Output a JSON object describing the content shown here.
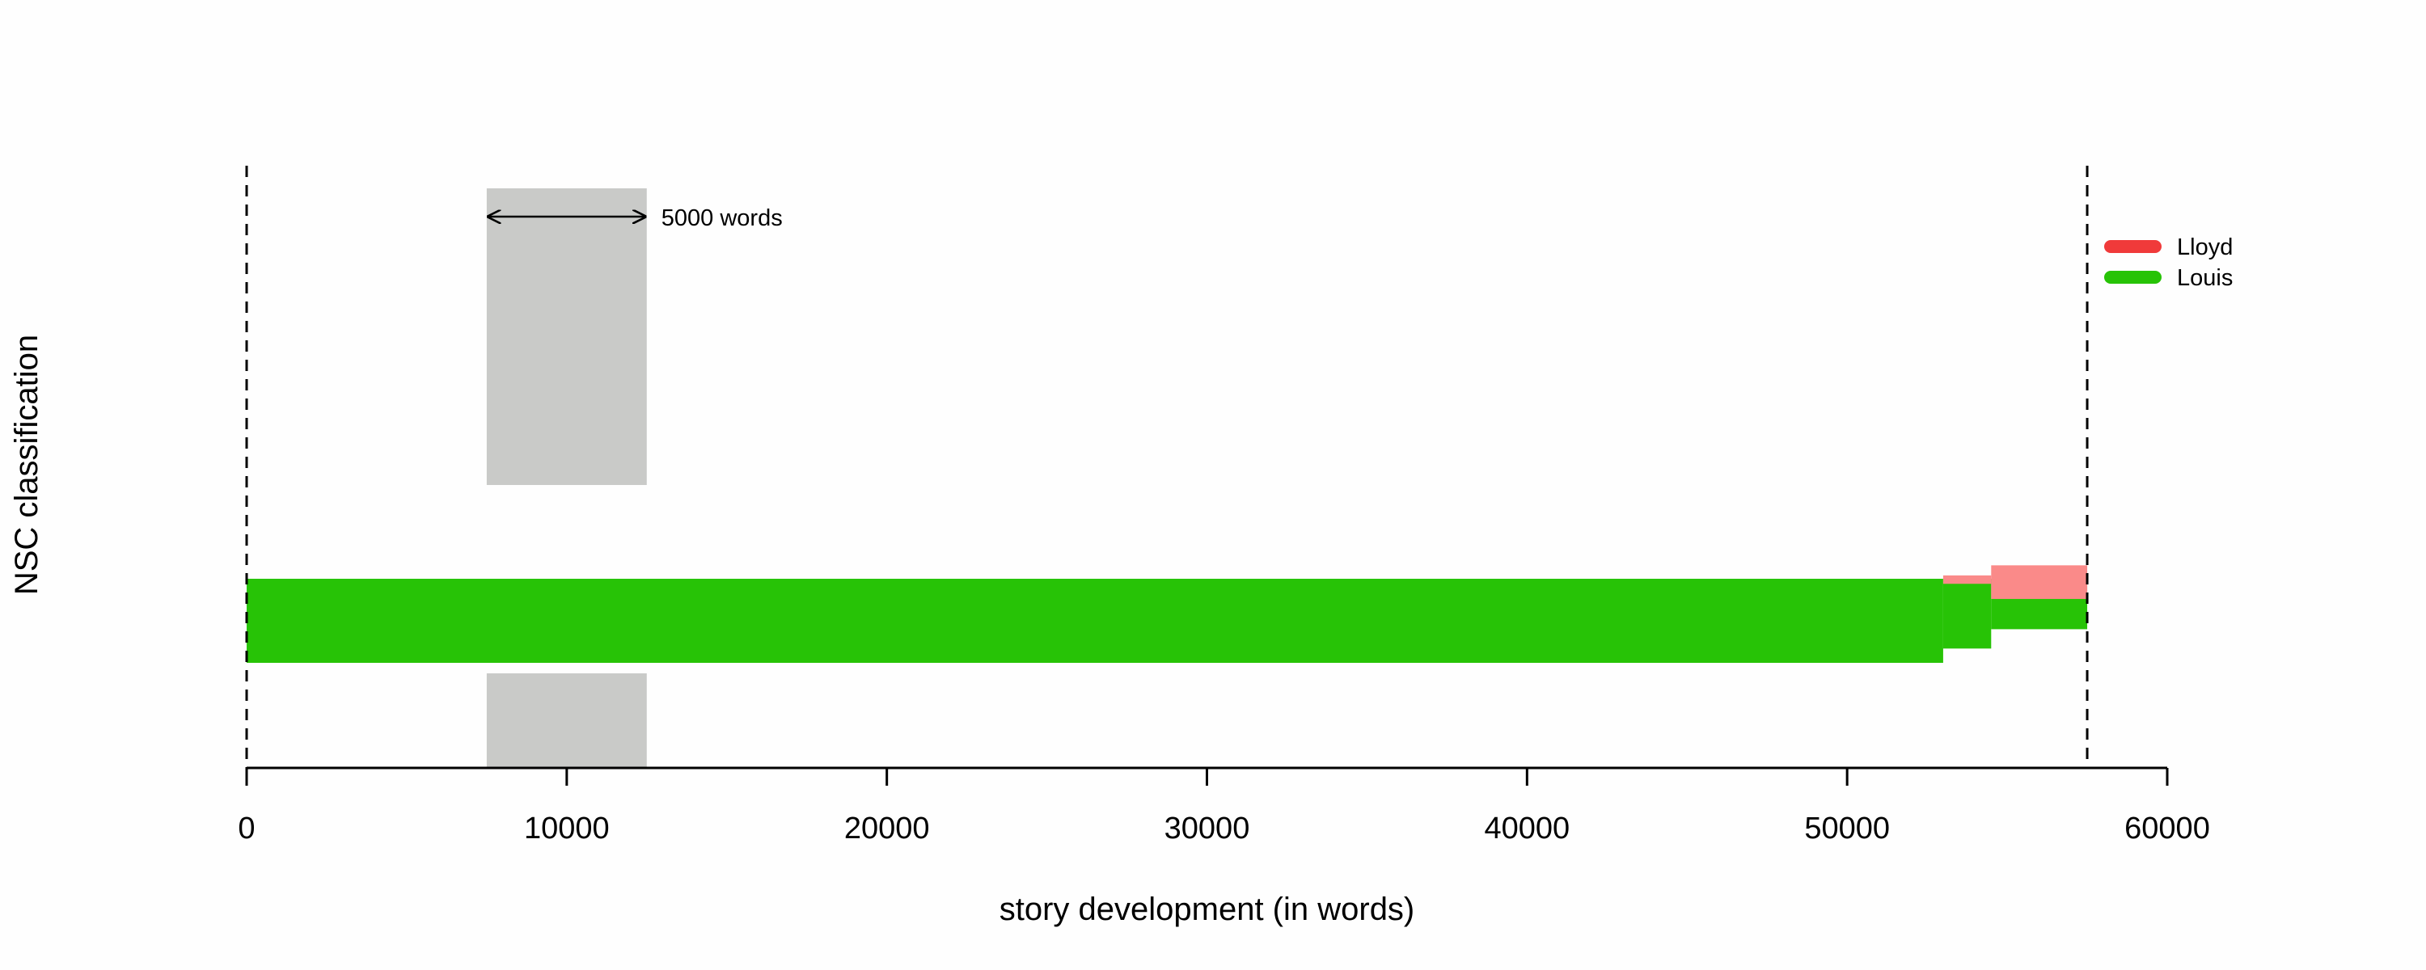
{
  "chart_data": {
    "type": "area",
    "title": "",
    "xlabel": "story development (in words)",
    "ylabel": "NSC classification",
    "xlim": [
      0,
      60000
    ],
    "x_ticks": [
      0,
      10000,
      20000,
      30000,
      40000,
      50000,
      60000
    ],
    "x_tick_labels": [
      "0",
      "10000",
      "20000",
      "30000",
      "40000",
      "50000",
      "60000"
    ],
    "story_end": 57500,
    "window": {
      "start": 7500,
      "end": 12500,
      "label": "5000 words"
    },
    "legend": {
      "position": "top-right",
      "entries": [
        {
          "name": "Lloyd",
          "color": "#f03a3a"
        },
        {
          "name": "Louis",
          "color": "#27c306"
        }
      ]
    },
    "segments": [
      {
        "series": "Louis",
        "x_start": 0,
        "x_end": 53000,
        "share": 1.0
      },
      {
        "series": "Louis",
        "x_start": 53000,
        "x_end": 54500,
        "share": 0.83
      },
      {
        "series": "Louis",
        "x_start": 54500,
        "x_end": 57500,
        "share": 0.6
      },
      {
        "series": "Lloyd",
        "x_start": 53000,
        "x_end": 54500,
        "share": 0.1
      },
      {
        "series": "Lloyd",
        "x_start": 54500,
        "x_end": 57500,
        "share": 0.4
      }
    ],
    "colors": {
      "Louis_fill": "#27c306",
      "Lloyd_fill": "#fa8a89",
      "window_fill": "#c9cac8"
    }
  }
}
